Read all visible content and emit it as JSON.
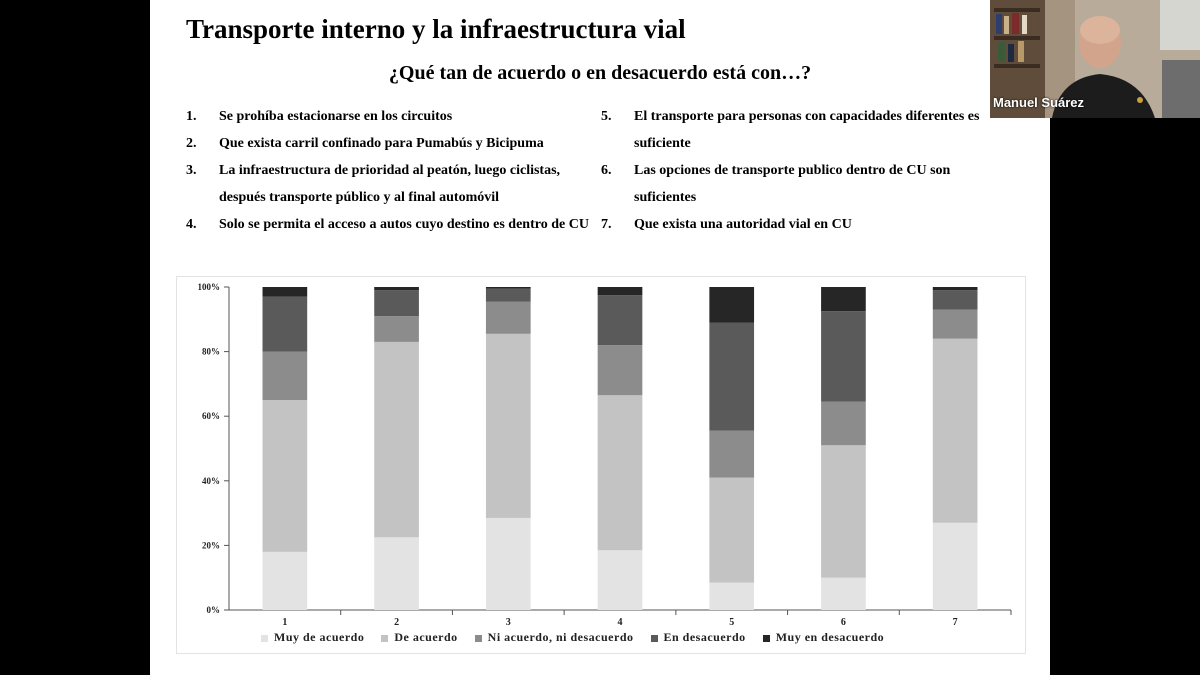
{
  "slide": {
    "title": "Transporte interno y la infraestructura vial",
    "subtitle": "¿Qué tan de acuerdo o en desacuerdo está con…?",
    "items": [
      {
        "num": "1.",
        "text": "Se prohíba estacionarse en los circuitos"
      },
      {
        "num": "2.",
        "text": "Que exista carril confinado para Pumabús y Bicipuma"
      },
      {
        "num": "3.",
        "text": "La infraestructura de prioridad al peatón, luego ciclistas, después transporte público y al final automóvil"
      },
      {
        "num": "4.",
        "text": "Solo se permita el acceso a autos cuyo destino es dentro de CU"
      },
      {
        "num": "5.",
        "text": "El transporte para personas con capacidades diferentes es suficiente"
      },
      {
        "num": "6.",
        "text": "Las opciones de transporte publico dentro de CU son suficientes"
      },
      {
        "num": "7.",
        "text": "Que exista una autoridad vial en CU"
      }
    ]
  },
  "video": {
    "participant_name": "Manuel Suárez"
  },
  "chart_data": {
    "type": "bar",
    "stacked": true,
    "categories": [
      "1",
      "2",
      "3",
      "4",
      "5",
      "6",
      "7"
    ],
    "y_ticks": [
      "0%",
      "20%",
      "40%",
      "60%",
      "80%",
      "100%"
    ],
    "ylim": [
      0,
      100
    ],
    "grid": false,
    "legend_position": "bottom",
    "series": [
      {
        "name": "Muy de acuerdo",
        "color": "#e3e3e3",
        "values": [
          18,
          22.5,
          28.5,
          18.5,
          8.5,
          10,
          27
        ]
      },
      {
        "name": "De acuerdo",
        "color": "#c3c3c3",
        "values": [
          47,
          60.5,
          57,
          48,
          32.5,
          41,
          57
        ]
      },
      {
        "name": "Ni acuerdo, ni desacuerdo",
        "color": "#8c8c8c",
        "values": [
          15,
          8,
          10,
          15.5,
          14.5,
          13.5,
          9
        ]
      },
      {
        "name": "En desacuerdo",
        "color": "#5a5a5a",
        "values": [
          17,
          8,
          4,
          15.5,
          33.5,
          28,
          6
        ]
      },
      {
        "name": "Muy en desacuerdo",
        "color": "#262626",
        "values": [
          3,
          1,
          0.5,
          2.5,
          11,
          7.5,
          1
        ]
      }
    ]
  }
}
